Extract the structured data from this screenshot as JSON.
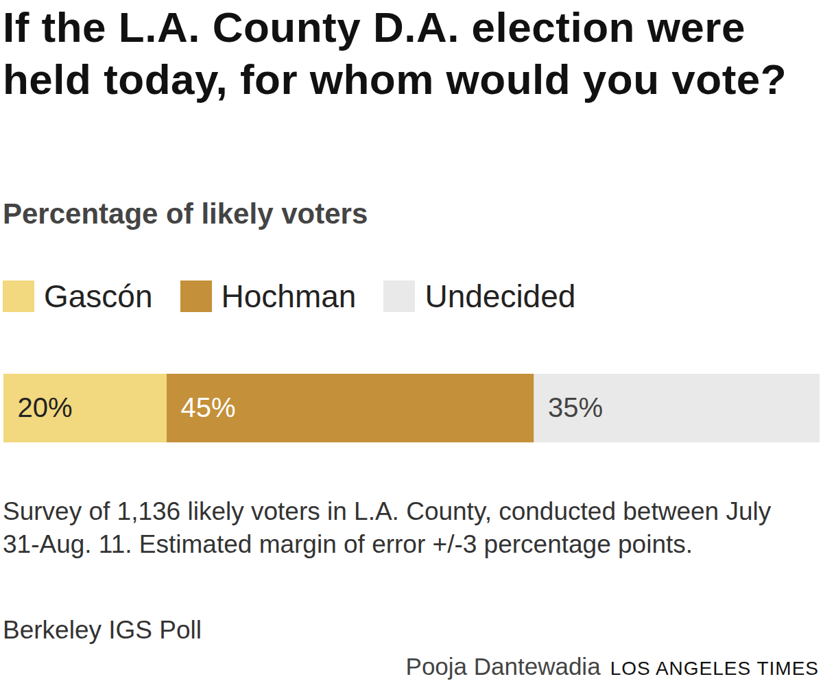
{
  "chart_data": {
    "type": "bar",
    "title": "If the L.A. County D.A. election were held today, for whom would you vote?",
    "subtitle": "Percentage of likely voters",
    "orientation": "horizontal",
    "stacked": true,
    "legend": "top",
    "data_labels": true,
    "tick_labels": false,
    "categories": [
      null
    ],
    "series": [
      {
        "name": "Gascón",
        "color": "#f2d87e",
        "values": [
          20
        ],
        "value_labels": [
          "20%"
        ]
      },
      {
        "name": "Hochman",
        "color": "#c4903a",
        "values": [
          45
        ],
        "value_labels": [
          "45%"
        ]
      },
      {
        "name": "Undecided",
        "color": "#e9e9e9",
        "values": [
          35
        ],
        "value_labels": [
          "35%"
        ]
      }
    ],
    "xlim": [
      0,
      100
    ],
    "notes": "Survey of 1,136 likely voters in L.A. County, conducted between July 31-Aug. 11. Estimated margin of error +/-3 percentage points.",
    "source": "Berkeley IGS Poll",
    "credit": [
      "Pooja Dantewadia",
      "LOS ANGELES TIMES"
    ]
  }
}
